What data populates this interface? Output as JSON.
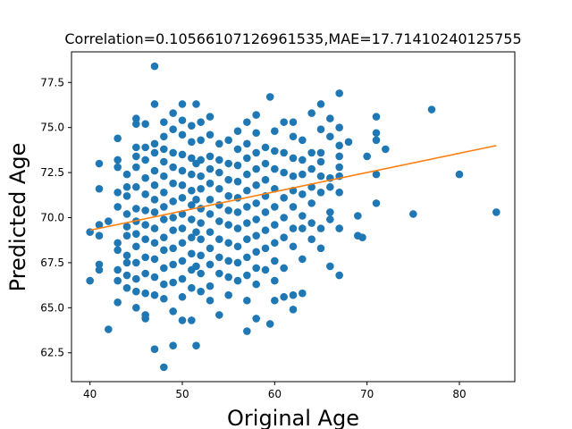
{
  "chart_data": {
    "type": "scatter",
    "title": "Correlation=0.10566107126961535,MAE=17.71410240125755",
    "xlabel": "Original Age",
    "ylabel": "Predicted Age",
    "xlim": [
      38,
      86
    ],
    "ylim": [
      60.9,
      79.2
    ],
    "xticks": [
      40,
      50,
      60,
      70,
      80
    ],
    "yticks": [
      62.5,
      65.0,
      67.5,
      70.0,
      72.5,
      75.0,
      77.5
    ],
    "grid": false,
    "legend": "none",
    "colors": {
      "points": "#1f77b4",
      "fit_line": "#ff7f0e"
    },
    "fit_line": {
      "x": [
        40,
        84
      ],
      "y": [
        69.3,
        74.0
      ]
    },
    "series": [
      {
        "points": [
          [
            40,
            69.2
          ],
          [
            40,
            66.5
          ],
          [
            41,
            73.0
          ],
          [
            41,
            71.6
          ],
          [
            41,
            69.6
          ],
          [
            41,
            69.0
          ],
          [
            41,
            67.4
          ],
          [
            41,
            67.1
          ],
          [
            42,
            69.8
          ],
          [
            42,
            63.8
          ],
          [
            43,
            74.4
          ],
          [
            43,
            73.2
          ],
          [
            43,
            72.8
          ],
          [
            43,
            71.4
          ],
          [
            43,
            70.6
          ],
          [
            43,
            68.6
          ],
          [
            43,
            68.2
          ],
          [
            43,
            67.1
          ],
          [
            43,
            66.5
          ],
          [
            43,
            65.3
          ],
          [
            44,
            72.4
          ],
          [
            44,
            71.7
          ],
          [
            44,
            71.2
          ],
          [
            44,
            70.2
          ],
          [
            44,
            69.5
          ],
          [
            44,
            69.0
          ],
          [
            44,
            67.9
          ],
          [
            44,
            67.5
          ],
          [
            44,
            66.8
          ],
          [
            44,
            66.1
          ],
          [
            45,
            75.5
          ],
          [
            45,
            75.2
          ],
          [
            45,
            73.9
          ],
          [
            45,
            73.4
          ],
          [
            45,
            72.8
          ],
          [
            45,
            71.7
          ],
          [
            45,
            70.5
          ],
          [
            45,
            69.8
          ],
          [
            45,
            69.1
          ],
          [
            45,
            68.4
          ],
          [
            45,
            67.5
          ],
          [
            45,
            66.6
          ],
          [
            45,
            65.9
          ],
          [
            45,
            65.0
          ],
          [
            46,
            75.2
          ],
          [
            46,
            73.9
          ],
          [
            46,
            73.2
          ],
          [
            46,
            72.2
          ],
          [
            46,
            71.3
          ],
          [
            46,
            70.4
          ],
          [
            46,
            69.6
          ],
          [
            46,
            68.8
          ],
          [
            46,
            67.8
          ],
          [
            46,
            66.9
          ],
          [
            46,
            65.8
          ],
          [
            46,
            64.6
          ],
          [
            46,
            64.4
          ],
          [
            47,
            78.4
          ],
          [
            47,
            76.3
          ],
          [
            47,
            74.1
          ],
          [
            47,
            73.6
          ],
          [
            47,
            72.6
          ],
          [
            47,
            71.8
          ],
          [
            47,
            71.0
          ],
          [
            47,
            70.3
          ],
          [
            47,
            69.4
          ],
          [
            47,
            68.6
          ],
          [
            47,
            67.7
          ],
          [
            47,
            66.7
          ],
          [
            47,
            65.7
          ],
          [
            47,
            62.7
          ],
          [
            48,
            75.3
          ],
          [
            48,
            74.5
          ],
          [
            48,
            73.8
          ],
          [
            48,
            73.1
          ],
          [
            48,
            72.3
          ],
          [
            48,
            71.4
          ],
          [
            48,
            70.6
          ],
          [
            48,
            69.9
          ],
          [
            48,
            68.9
          ],
          [
            48,
            68.2
          ],
          [
            48,
            67.2
          ],
          [
            48,
            66.3
          ],
          [
            48,
            65.5
          ],
          [
            48,
            61.7
          ],
          [
            49,
            75.8
          ],
          [
            49,
            74.9
          ],
          [
            49,
            73.6
          ],
          [
            49,
            72.8
          ],
          [
            49,
            71.9
          ],
          [
            49,
            70.9
          ],
          [
            49,
            70.0
          ],
          [
            49,
            69.3
          ],
          [
            49,
            68.3
          ],
          [
            49,
            67.4
          ],
          [
            49,
            66.4
          ],
          [
            49,
            64.8
          ],
          [
            49,
            62.9
          ],
          [
            50,
            76.3
          ],
          [
            50,
            75.4
          ],
          [
            50,
            74.6
          ],
          [
            50,
            73.5
          ],
          [
            50,
            72.6
          ],
          [
            50,
            71.8
          ],
          [
            50,
            71.1
          ],
          [
            50,
            70.2
          ],
          [
            50,
            69.4
          ],
          [
            50,
            68.6
          ],
          [
            50,
            67.6
          ],
          [
            50,
            66.6
          ],
          [
            50,
            65.6
          ],
          [
            50,
            64.3
          ],
          [
            51,
            75.1
          ],
          [
            51,
            74.2
          ],
          [
            51,
            73.3
          ],
          [
            51,
            72.4
          ],
          [
            51,
            71.5
          ],
          [
            51,
            70.7
          ],
          [
            51,
            69.9
          ],
          [
            51,
            68.9
          ],
          [
            51,
            68.0
          ],
          [
            51,
            67.1
          ],
          [
            51,
            66.1
          ],
          [
            51,
            64.3
          ],
          [
            51.5,
            76.3
          ],
          [
            51.5,
            73.0
          ],
          [
            51.5,
            71.0
          ],
          [
            51.5,
            69.2
          ],
          [
            51.5,
            67.3
          ],
          [
            51.5,
            62.9
          ],
          [
            52,
            75.3
          ],
          [
            52,
            74.3
          ],
          [
            52,
            73.2
          ],
          [
            52,
            72.3
          ],
          [
            52,
            71.6
          ],
          [
            52,
            70.5
          ],
          [
            52,
            69.7
          ],
          [
            52,
            68.8
          ],
          [
            52,
            67.9
          ],
          [
            52,
            66.9
          ],
          [
            52,
            65.9
          ],
          [
            53,
            75.6
          ],
          [
            53,
            74.6
          ],
          [
            53,
            73.4
          ],
          [
            53,
            72.7
          ],
          [
            53,
            71.9
          ],
          [
            53,
            71.0
          ],
          [
            53,
            70.2
          ],
          [
            53,
            69.2
          ],
          [
            53,
            68.3
          ],
          [
            53,
            67.4
          ],
          [
            53,
            66.2
          ],
          [
            53,
            65.4
          ],
          [
            54,
            74.1
          ],
          [
            54,
            73.2
          ],
          [
            54,
            72.5
          ],
          [
            54,
            71.6
          ],
          [
            54,
            70.7
          ],
          [
            54,
            69.8
          ],
          [
            54,
            68.8
          ],
          [
            54,
            67.8
          ],
          [
            54,
            66.9
          ],
          [
            54,
            64.6
          ],
          [
            55,
            74.3
          ],
          [
            55,
            73.0
          ],
          [
            55,
            72.1
          ],
          [
            55,
            71.2
          ],
          [
            55,
            70.4
          ],
          [
            55,
            69.6
          ],
          [
            55,
            68.6
          ],
          [
            55,
            67.6
          ],
          [
            55,
            66.7
          ],
          [
            55,
            65.7
          ],
          [
            56,
            74.8
          ],
          [
            56,
            73.8
          ],
          [
            56,
            72.9
          ],
          [
            56,
            72.0
          ],
          [
            56,
            71.1
          ],
          [
            56,
            70.3
          ],
          [
            56,
            69.4
          ],
          [
            56,
            68.4
          ],
          [
            56,
            67.5
          ],
          [
            56,
            66.5
          ],
          [
            57,
            75.3
          ],
          [
            57,
            74.1
          ],
          [
            57,
            73.3
          ],
          [
            57,
            72.4
          ],
          [
            57,
            71.5
          ],
          [
            57,
            70.6
          ],
          [
            57,
            69.7
          ],
          [
            57,
            68.8
          ],
          [
            57,
            67.8
          ],
          [
            57,
            66.8
          ],
          [
            57,
            65.4
          ],
          [
            57,
            63.7
          ],
          [
            58,
            75.7
          ],
          [
            58,
            74.7
          ],
          [
            58,
            73.6
          ],
          [
            58,
            72.7
          ],
          [
            58,
            71.8
          ],
          [
            58,
            70.8
          ],
          [
            58,
            69.9
          ],
          [
            58,
            69.0
          ],
          [
            58,
            68.1
          ],
          [
            58,
            67.2
          ],
          [
            58,
            66.3
          ],
          [
            58,
            64.4
          ],
          [
            59,
            73.9
          ],
          [
            59,
            73.0
          ],
          [
            59,
            72.1
          ],
          [
            59,
            71.2
          ],
          [
            59,
            70.3
          ],
          [
            59,
            69.3
          ],
          [
            59,
            68.3
          ],
          [
            59,
            67.1
          ],
          [
            59.5,
            76.7
          ],
          [
            59.5,
            64.1
          ],
          [
            60,
            74.8
          ],
          [
            60,
            73.7
          ],
          [
            60,
            72.7
          ],
          [
            60,
            71.6
          ],
          [
            60,
            70.6
          ],
          [
            60,
            69.6
          ],
          [
            60,
            68.6
          ],
          [
            60,
            67.6
          ],
          [
            60,
            66.5
          ],
          [
            60,
            65.4
          ],
          [
            61,
            75.3
          ],
          [
            61,
            73.6
          ],
          [
            61,
            72.5
          ],
          [
            61,
            71.1
          ],
          [
            61,
            70.0
          ],
          [
            61,
            68.9
          ],
          [
            61,
            67.2
          ],
          [
            61,
            65.6
          ],
          [
            62,
            75.3
          ],
          [
            62,
            74.5
          ],
          [
            62,
            73.3
          ],
          [
            62,
            72.3
          ],
          [
            62,
            71.5
          ],
          [
            62,
            70.6
          ],
          [
            62,
            69.4
          ],
          [
            62,
            68.4
          ],
          [
            62,
            65.7
          ],
          [
            62,
            64.9
          ],
          [
            63,
            74.3
          ],
          [
            63,
            73.2
          ],
          [
            63,
            72.4
          ],
          [
            63,
            71.3
          ],
          [
            63,
            70.1
          ],
          [
            63,
            69.4
          ],
          [
            63,
            67.7
          ],
          [
            63,
            65.8
          ],
          [
            64,
            75.8
          ],
          [
            64,
            73.6
          ],
          [
            64,
            72.7
          ],
          [
            64,
            71.7
          ],
          [
            64,
            70.8
          ],
          [
            64,
            69.7
          ],
          [
            64,
            68.8
          ],
          [
            65,
            76.3
          ],
          [
            65,
            74.9
          ],
          [
            65,
            73.6
          ],
          [
            65,
            73.1
          ],
          [
            65,
            72.3
          ],
          [
            65,
            71.4
          ],
          [
            65,
            69.4
          ],
          [
            65,
            68.3
          ],
          [
            66,
            75.5
          ],
          [
            66,
            74.5
          ],
          [
            66,
            72.2
          ],
          [
            66,
            71.7
          ],
          [
            66,
            70.3
          ],
          [
            66,
            69.9
          ],
          [
            66,
            67.3
          ],
          [
            67,
            76.9
          ],
          [
            67,
            75.0
          ],
          [
            67,
            74.0
          ],
          [
            67,
            73.4
          ],
          [
            67,
            72.8
          ],
          [
            67,
            72.3
          ],
          [
            67,
            71.4
          ],
          [
            67,
            69.4
          ],
          [
            67,
            66.8
          ],
          [
            68,
            74.2
          ],
          [
            69,
            70.1
          ],
          [
            69,
            69.0
          ],
          [
            69.5,
            68.9
          ],
          [
            70,
            73.4
          ],
          [
            71,
            75.6
          ],
          [
            71,
            74.7
          ],
          [
            71,
            74.3
          ],
          [
            71,
            72.4
          ],
          [
            71,
            70.8
          ],
          [
            72,
            73.8
          ],
          [
            75,
            70.2
          ],
          [
            77,
            76.0
          ],
          [
            80,
            72.4
          ],
          [
            84,
            70.3
          ]
        ]
      }
    ]
  }
}
